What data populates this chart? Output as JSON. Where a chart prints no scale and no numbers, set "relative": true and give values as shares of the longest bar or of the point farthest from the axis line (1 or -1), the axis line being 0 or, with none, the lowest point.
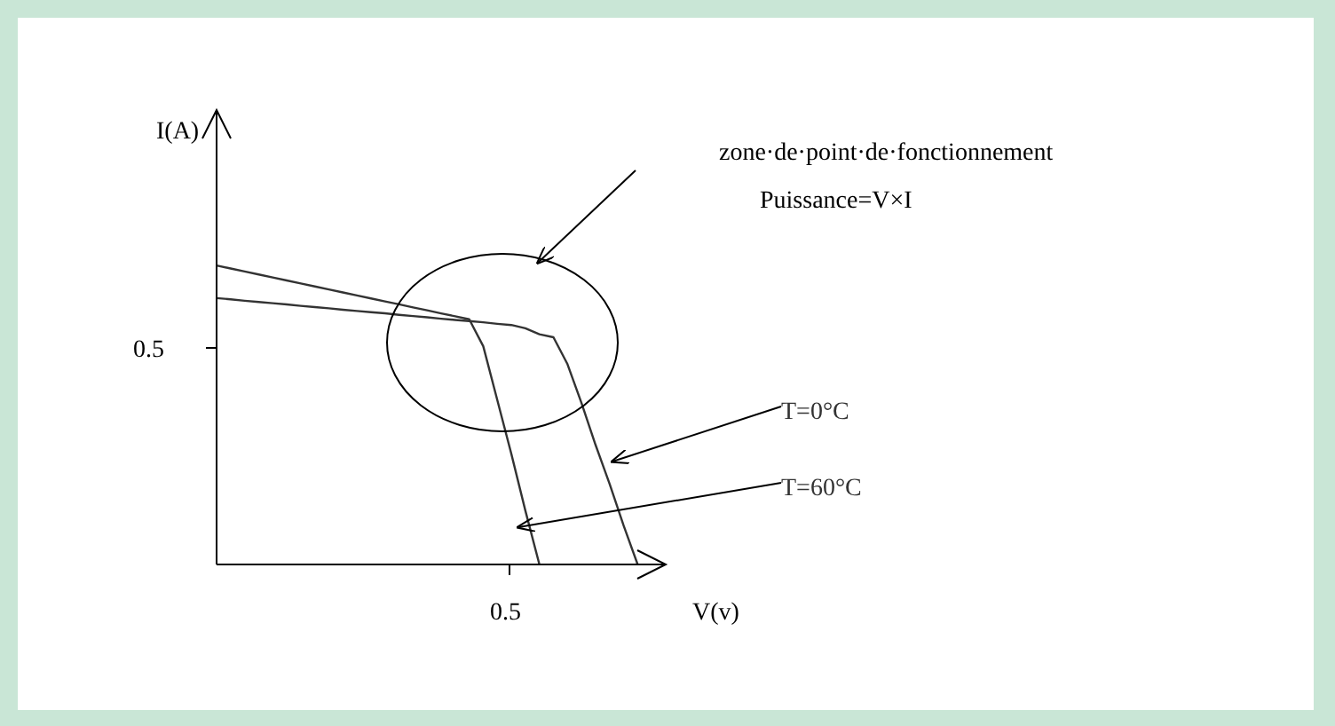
{
  "chart_data": {
    "type": "line",
    "xlabel": "V(v)",
    "ylabel": "I(A)",
    "relative": true,
    "annotations": [
      "zone·de·point·de·fonctionnement",
      "Puissance=V×I",
      "0.5",
      "0.5"
    ],
    "categories": [
      null,
      null,
      null,
      null,
      null,
      null,
      null,
      null,
      null,
      null,
      null,
      null,
      null,
      null,
      null,
      null,
      null,
      null,
      null,
      null,
      null,
      null,
      null,
      null,
      null,
      null,
      null,
      null,
      null,
      null,
      null,
      null,
      null
    ],
    "grid": false,
    "legend": false,
    "marker": "none",
    "line_style": "solid",
    "series": [
      {
        "name": "T=0°C",
        "color": "#333333",
        "values": [
          0.891,
          0.887,
          0.882,
          0.878,
          0.874,
          0.87,
          0.865,
          0.861,
          0.857,
          0.852,
          0.848,
          0.844,
          0.84,
          0.835,
          0.831,
          0.827,
          0.822,
          0.818,
          0.814,
          0.81,
          0.805,
          0.801,
          0.79,
          0.77,
          0.76,
          0.67,
          0.54,
          0.4,
          0.27,
          0.13,
          0,
          null,
          null
        ]
      },
      {
        "name": "T=60°C",
        "color": "#333333",
        "values": [
          1,
          0.99,
          0.98,
          0.97,
          0.96,
          0.95,
          0.94,
          0.93,
          0.92,
          0.91,
          0.9,
          0.89,
          0.88,
          0.87,
          0.86,
          0.85,
          0.84,
          0.83,
          0.82,
          0.73,
          0.55,
          0.37,
          0.18,
          0,
          null,
          null,
          null,
          null,
          null,
          null,
          null,
          null,
          null
        ]
      }
    ]
  }
}
